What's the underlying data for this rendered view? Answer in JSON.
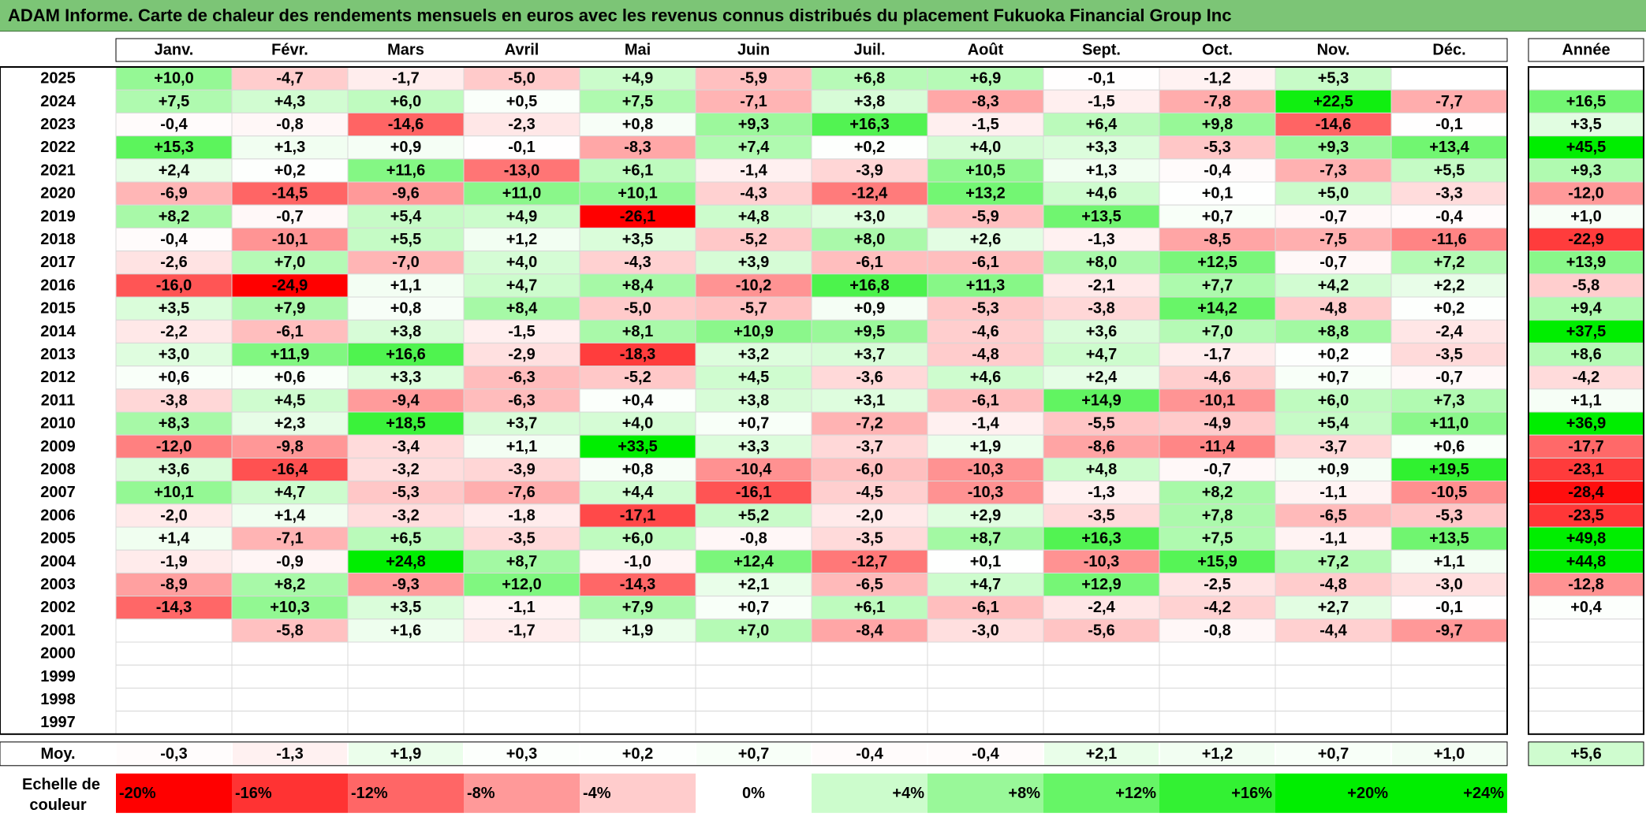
{
  "title": "ADAM Informe. Carte de chaleur des rendements mensuels en euros avec les revenus connus distribués du placement Fukuoka Financial Group Inc",
  "chart_data": {
    "type": "heatmap",
    "title": "ADAM Informe. Carte de chaleur des rendements mensuels en euros avec les revenus connus distribués du placement Fukuoka Financial Group Inc",
    "columns": [
      "Janv.",
      "Févr.",
      "Mars",
      "Avril",
      "Mai",
      "Juin",
      "Juil.",
      "Août",
      "Sept.",
      "Oct.",
      "Nov.",
      "Déc."
    ],
    "year_header": "Année",
    "rows": [
      {
        "year": "2025",
        "values": [
          "+10,0",
          "-4,7",
          "-1,7",
          "-5,0",
          "+4,9",
          "-5,9",
          "+6,8",
          "+6,9",
          "-0,1",
          "-1,2",
          "+5,3",
          ""
        ],
        "annual": ""
      },
      {
        "year": "2024",
        "values": [
          "+7,5",
          "+4,3",
          "+6,0",
          "+0,5",
          "+7,5",
          "-7,1",
          "+3,8",
          "-8,3",
          "-1,5",
          "-7,8",
          "+22,5",
          "-7,7"
        ],
        "annual": "+16,5"
      },
      {
        "year": "2023",
        "values": [
          "-0,4",
          "-0,8",
          "-14,6",
          "-2,3",
          "+0,8",
          "+9,3",
          "+16,3",
          "-1,5",
          "+6,4",
          "+9,8",
          "-14,6",
          "-0,1"
        ],
        "annual": "+3,5"
      },
      {
        "year": "2022",
        "values": [
          "+15,3",
          "+1,3",
          "+0,9",
          "-0,1",
          "-8,3",
          "+7,4",
          "+0,2",
          "+4,0",
          "+3,3",
          "-5,3",
          "+9,3",
          "+13,4"
        ],
        "annual": "+45,5"
      },
      {
        "year": "2021",
        "values": [
          "+2,4",
          "+0,2",
          "+11,6",
          "-13,0",
          "+6,1",
          "-1,4",
          "-3,9",
          "+10,5",
          "+1,3",
          "-0,4",
          "-7,3",
          "+5,5"
        ],
        "annual": "+9,3"
      },
      {
        "year": "2020",
        "values": [
          "-6,9",
          "-14,5",
          "-9,6",
          "+11,0",
          "+10,1",
          "-4,3",
          "-12,4",
          "+13,2",
          "+4,6",
          "+0,1",
          "+5,0",
          "-3,3"
        ],
        "annual": "-12,0"
      },
      {
        "year": "2019",
        "values": [
          "+8,2",
          "-0,7",
          "+5,4",
          "+4,9",
          "-26,1",
          "+4,8",
          "+3,0",
          "-5,9",
          "+13,5",
          "+0,7",
          "-0,7",
          "-0,4"
        ],
        "annual": "+1,0"
      },
      {
        "year": "2018",
        "values": [
          "-0,4",
          "-10,1",
          "+5,5",
          "+1,2",
          "+3,5",
          "-5,2",
          "+8,0",
          "+2,6",
          "-1,3",
          "-8,5",
          "-7,5",
          "-11,6"
        ],
        "annual": "-22,9"
      },
      {
        "year": "2017",
        "values": [
          "-2,6",
          "+7,0",
          "-7,0",
          "+4,0",
          "-4,3",
          "+3,9",
          "-6,1",
          "-6,1",
          "+8,0",
          "+12,5",
          "-0,7",
          "+7,2"
        ],
        "annual": "+13,9"
      },
      {
        "year": "2016",
        "values": [
          "-16,0",
          "-24,9",
          "+1,1",
          "+4,7",
          "+8,4",
          "-10,2",
          "+16,8",
          "+11,3",
          "-2,1",
          "+7,7",
          "+4,2",
          "+2,2"
        ],
        "annual": "-5,8"
      },
      {
        "year": "2015",
        "values": [
          "+3,5",
          "+7,9",
          "+0,8",
          "+8,4",
          "-5,0",
          "-5,7",
          "+0,9",
          "-5,3",
          "-3,8",
          "+14,2",
          "-4,8",
          "+0,2"
        ],
        "annual": "+9,4"
      },
      {
        "year": "2014",
        "values": [
          "-2,2",
          "-6,1",
          "+3,8",
          "-1,5",
          "+8,1",
          "+10,9",
          "+9,5",
          "-4,6",
          "+3,6",
          "+7,0",
          "+8,8",
          "-2,4"
        ],
        "annual": "+37,5"
      },
      {
        "year": "2013",
        "values": [
          "+3,0",
          "+11,9",
          "+16,6",
          "-2,9",
          "-18,3",
          "+3,2",
          "+3,7",
          "-4,8",
          "+4,7",
          "-1,7",
          "+0,2",
          "-3,5"
        ],
        "annual": "+8,6"
      },
      {
        "year": "2012",
        "values": [
          "+0,6",
          "+0,6",
          "+3,3",
          "-6,3",
          "-5,2",
          "+4,5",
          "-3,6",
          "+4,6",
          "+2,4",
          "-4,6",
          "+0,7",
          "-0,7"
        ],
        "annual": "-4,2"
      },
      {
        "year": "2011",
        "values": [
          "-3,8",
          "+4,5",
          "-9,4",
          "-6,3",
          "+0,4",
          "+3,8",
          "+3,1",
          "-6,1",
          "+14,9",
          "-10,1",
          "+6,0",
          "+7,3"
        ],
        "annual": "+1,1"
      },
      {
        "year": "2010",
        "values": [
          "+8,3",
          "+2,3",
          "+18,5",
          "+3,7",
          "+4,0",
          "+0,7",
          "-7,2",
          "-1,4",
          "-5,5",
          "-4,9",
          "+5,4",
          "+11,0"
        ],
        "annual": "+36,9"
      },
      {
        "year": "2009",
        "values": [
          "-12,0",
          "-9,8",
          "-3,4",
          "+1,1",
          "+33,5",
          "+3,3",
          "-3,7",
          "+1,9",
          "-8,6",
          "-11,4",
          "-3,7",
          "+0,6"
        ],
        "annual": "-17,7"
      },
      {
        "year": "2008",
        "values": [
          "+3,6",
          "-16,4",
          "-3,2",
          "-3,9",
          "+0,8",
          "-10,4",
          "-6,0",
          "-10,3",
          "+4,8",
          "-0,7",
          "+0,9",
          "+19,5"
        ],
        "annual": "-23,1"
      },
      {
        "year": "2007",
        "values": [
          "+10,1",
          "+4,7",
          "-5,3",
          "-7,6",
          "+4,4",
          "-16,1",
          "-4,5",
          "-10,3",
          "-1,3",
          "+8,2",
          "-1,1",
          "-10,5"
        ],
        "annual": "-28,4"
      },
      {
        "year": "2006",
        "values": [
          "-2,0",
          "+1,4",
          "-3,2",
          "-1,8",
          "-17,1",
          "+5,2",
          "-2,0",
          "+2,9",
          "-3,5",
          "+7,8",
          "-6,5",
          "-5,3"
        ],
        "annual": "-23,5"
      },
      {
        "year": "2005",
        "values": [
          "+1,4",
          "-7,1",
          "+6,5",
          "-3,5",
          "+6,0",
          "-0,8",
          "-3,5",
          "+8,7",
          "+16,3",
          "+7,5",
          "-1,1",
          "+13,5"
        ],
        "annual": "+49,8"
      },
      {
        "year": "2004",
        "values": [
          "-1,9",
          "-0,9",
          "+24,8",
          "+8,7",
          "-1,0",
          "+12,4",
          "-12,7",
          "+0,1",
          "-10,3",
          "+15,9",
          "+7,2",
          "+1,1"
        ],
        "annual": "+44,8"
      },
      {
        "year": "2003",
        "values": [
          "-8,9",
          "+8,2",
          "-9,3",
          "+12,0",
          "-14,3",
          "+2,1",
          "-6,5",
          "+4,7",
          "+12,9",
          "-2,5",
          "-4,8",
          "-3,0"
        ],
        "annual": "-12,8"
      },
      {
        "year": "2002",
        "values": [
          "-14,3",
          "+10,3",
          "+3,5",
          "-1,1",
          "+7,9",
          "+0,7",
          "+6,1",
          "-6,1",
          "-2,4",
          "-4,2",
          "+2,7",
          "-0,1"
        ],
        "annual": "+0,4"
      },
      {
        "year": "2001",
        "values": [
          "",
          "-5,8",
          "+1,6",
          "-1,7",
          "+1,9",
          "+7,0",
          "-8,4",
          "-3,0",
          "-5,6",
          "-0,8",
          "-4,4",
          "-9,7"
        ],
        "annual": ""
      },
      {
        "year": "2000",
        "values": [
          "",
          "",
          "",
          "",
          "",
          "",
          "",
          "",
          "",
          "",
          "",
          ""
        ],
        "annual": ""
      },
      {
        "year": "1999",
        "values": [
          "",
          "",
          "",
          "",
          "",
          "",
          "",
          "",
          "",
          "",
          "",
          ""
        ],
        "annual": ""
      },
      {
        "year": "1998",
        "values": [
          "",
          "",
          "",
          "",
          "",
          "",
          "",
          "",
          "",
          "",
          "",
          ""
        ],
        "annual": ""
      },
      {
        "year": "1997",
        "values": [
          "",
          "",
          "",
          "",
          "",
          "",
          "",
          "",
          "",
          "",
          "",
          ""
        ],
        "annual": ""
      }
    ],
    "average": {
      "label": "Moy.",
      "values": [
        "-0,3",
        "-1,3",
        "+1,9",
        "+0,3",
        "+0,2",
        "+0,7",
        "-0,4",
        "-0,4",
        "+2,1",
        "+1,2",
        "+0,7",
        "+1,0"
      ],
      "annual": "+5,6"
    },
    "scale": {
      "label_line1": "Echelle de",
      "label_line2": "couleur",
      "steps": [
        "-20%",
        "-16%",
        "-12%",
        "-8%",
        "-4%",
        "0%",
        "+4%",
        "+8%",
        "+12%",
        "+16%",
        "+20%",
        "+24%"
      ]
    },
    "colors": {
      "title_bg": "#7cc576",
      "max_red": "#ff0000",
      "max_green": "#00ee00",
      "neutral": "#ffffff"
    }
  }
}
